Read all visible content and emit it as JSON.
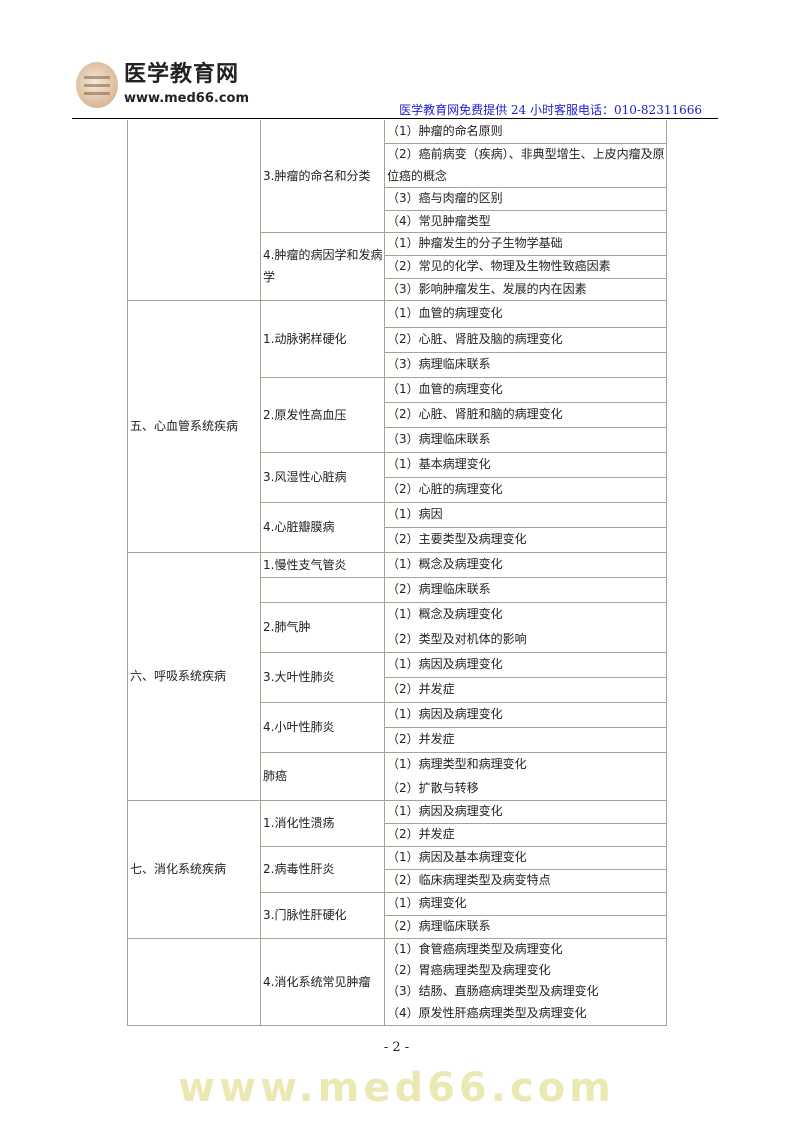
{
  "header": {
    "logo_title": "医学教育网",
    "logo_url": "www.med66.com",
    "hotline": "医学教育网免费提供 24 小时客服电话：010-82311666"
  },
  "watermark": "www.med66.com",
  "sections": [
    {
      "title": "",
      "groups": [
        {
          "label": "3.肿瘤的命名和分类",
          "items": [
            "（1）肿瘤的命名原则",
            "（2）癌前病变（疾病）、非典型增生、上皮内瘤及原位癌的概念",
            "（3）癌与肉瘤的区别",
            "（4）常见肿瘤类型"
          ]
        },
        {
          "label": "4.肿瘤的病因学和发病学",
          "items": [
            "（1）肿瘤发生的分子生物学基础",
            "（2）常见的化学、物理及生物性致癌因素",
            "（3）影响肿瘤发生、发展的内在因素"
          ]
        }
      ]
    },
    {
      "title": "五、心血管系统疾病",
      "groups": [
        {
          "label": "1.动脉粥样硬化",
          "items": [
            "（1）血管的病理变化",
            "（2）心脏、肾脏及脑的病理变化",
            "（3）病理临床联系"
          ]
        },
        {
          "label": "2.原发性高血压",
          "items": [
            "（1）血管的病理变化",
            "（2）心脏、肾脏和脑的病理变化",
            "（3）病理临床联系"
          ]
        },
        {
          "label": "3.风湿性心脏病",
          "items": [
            "（1）基本病理变化",
            "（2）心脏的病理变化"
          ]
        },
        {
          "label": "4.心脏瓣膜病",
          "items": [
            "（1）病因",
            "（2）主要类型及病理变化"
          ]
        }
      ]
    },
    {
      "title": "六、呼吸系统疾病",
      "groups": [
        {
          "label": "1.慢性支气管炎",
          "items": [
            "（1）概念及病理变化"
          ]
        },
        {
          "label": "",
          "items": [
            "（2）病理临床联系"
          ]
        },
        {
          "label": "2.肺气肿",
          "items": [
            "（1）概念及病理变化",
            "（2）类型及对机体的影响"
          ]
        },
        {
          "label": "3.大叶性肺炎",
          "items": [
            "（1）病因及病理变化",
            "（2）并发症"
          ]
        },
        {
          "label": "4.小叶性肺炎",
          "items": [
            "（1）病因及病理变化",
            "（2）并发症"
          ]
        },
        {
          "label": "肺癌",
          "items": [
            "（1）病理类型和病理变化",
            "（2）扩散与转移"
          ]
        }
      ]
    },
    {
      "title": "七、消化系统疾病",
      "groups": [
        {
          "label": "1.消化性溃疡",
          "items": [
            "（1）病因及病理变化",
            "（2）并发症"
          ]
        },
        {
          "label": "2.病毒性肝炎",
          "items": [
            "（1）病因及基本病理变化",
            "（2）临床病理类型及病变特点"
          ]
        },
        {
          "label": "3.门脉性肝硬化",
          "items": [
            "（1）病理变化",
            "（2）病理临床联系"
          ]
        }
      ]
    },
    {
      "title": "",
      "groups": [
        {
          "label": "4.消化系统常见肿瘤",
          "items": [
            "（1）食管癌病理类型及病理变化",
            "（2）胃癌病理类型及病理变化",
            "（3）结肠、直肠癌病理类型及病理变化",
            "（4）原发性肝癌病理类型及病理变化"
          ]
        }
      ]
    }
  ],
  "page_number": "- 2 -"
}
